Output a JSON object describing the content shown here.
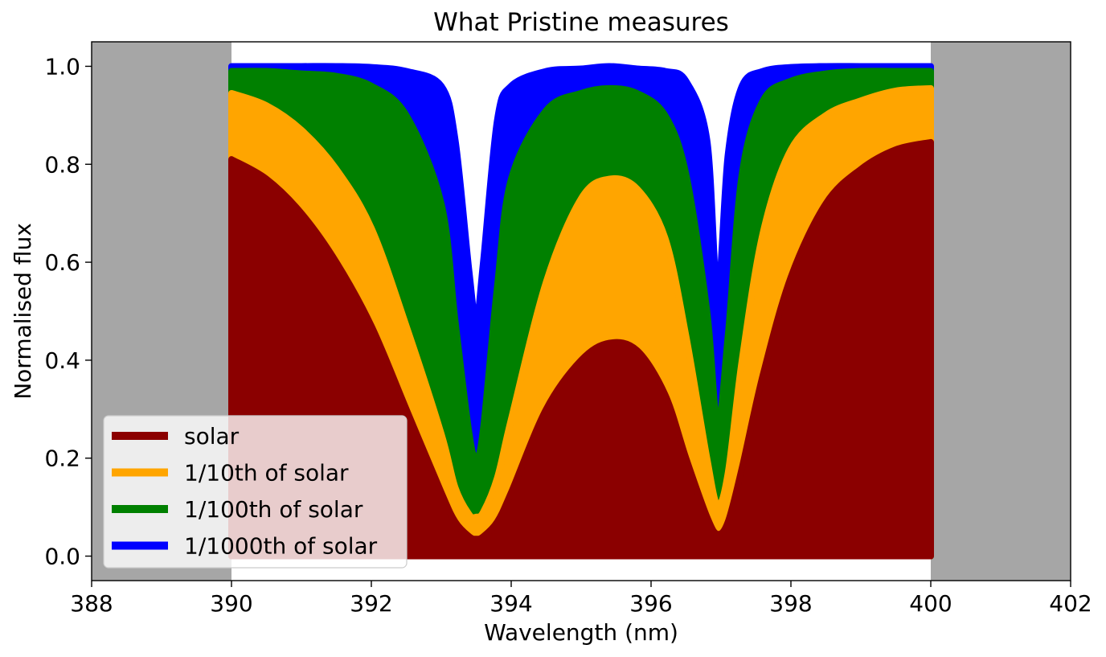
{
  "chart_data": {
    "type": "area",
    "title": "What Pristine measures",
    "xlabel": "Wavelength (nm)",
    "ylabel": "Normalised flux",
    "xlim": [
      388,
      402
    ],
    "ylim": [
      -0.05,
      1.05
    ],
    "xticks": [
      388,
      390,
      392,
      394,
      396,
      398,
      400,
      402
    ],
    "xtick_labels": [
      "388",
      "390",
      "392",
      "394",
      "396",
      "398",
      "400",
      "402"
    ],
    "yticks": [
      0.0,
      0.2,
      0.4,
      0.6,
      0.8,
      1.0
    ],
    "ytick_labels": [
      "0.0",
      "0.2",
      "0.4",
      "0.6",
      "0.8",
      "1.0"
    ],
    "grid": false,
    "legend": "lower-left",
    "shaded_regions": [
      {
        "x": [
          388,
          390
        ],
        "color": "#a6a6a6"
      },
      {
        "x": [
          400,
          402
        ],
        "color": "#a6a6a6"
      }
    ],
    "x": [
      390.0,
      390.5,
      391.0,
      391.5,
      392.0,
      392.5,
      393.0,
      393.2,
      393.4,
      393.5,
      393.6,
      393.8,
      394.0,
      394.5,
      395.0,
      395.4,
      395.8,
      396.2,
      396.5,
      396.8,
      396.95,
      397.1,
      397.3,
      397.6,
      398.0,
      398.5,
      399.0,
      399.5,
      400.0
    ],
    "series": [
      {
        "name": "solar",
        "color": "#8b0000",
        "values": [
          0.81,
          0.77,
          0.7,
          0.6,
          0.47,
          0.3,
          0.13,
          0.07,
          0.04,
          0.035,
          0.04,
          0.07,
          0.13,
          0.3,
          0.4,
          0.435,
          0.42,
          0.33,
          0.2,
          0.08,
          0.045,
          0.07,
          0.18,
          0.37,
          0.57,
          0.72,
          0.79,
          0.83,
          0.845
        ]
      },
      {
        "name": "1/10th of solar",
        "color": "#ffa500",
        "values": [
          0.945,
          0.92,
          0.87,
          0.79,
          0.67,
          0.47,
          0.25,
          0.14,
          0.085,
          0.08,
          0.09,
          0.16,
          0.28,
          0.56,
          0.73,
          0.77,
          0.75,
          0.65,
          0.45,
          0.2,
          0.105,
          0.17,
          0.4,
          0.66,
          0.83,
          0.9,
          0.93,
          0.95,
          0.955
        ]
      },
      {
        "name": "1/100th of solar",
        "color": "#008000",
        "values": [
          0.99,
          0.99,
          0.985,
          0.98,
          0.96,
          0.9,
          0.72,
          0.48,
          0.25,
          0.2,
          0.26,
          0.55,
          0.77,
          0.91,
          0.945,
          0.955,
          0.945,
          0.9,
          0.78,
          0.5,
          0.27,
          0.45,
          0.78,
          0.93,
          0.97,
          0.985,
          0.99,
          0.99,
          0.99
        ]
      },
      {
        "name": "1/1000th of solar",
        "color": "#0000ff",
        "values": [
          1.0,
          1.0,
          1.0,
          1.0,
          0.998,
          0.99,
          0.96,
          0.85,
          0.58,
          0.48,
          0.6,
          0.89,
          0.96,
          0.99,
          0.995,
          1.0,
          0.995,
          0.99,
          0.97,
          0.85,
          0.54,
          0.82,
          0.96,
          0.99,
          0.998,
          1.0,
          1.0,
          1.0,
          1.0
        ]
      }
    ]
  }
}
